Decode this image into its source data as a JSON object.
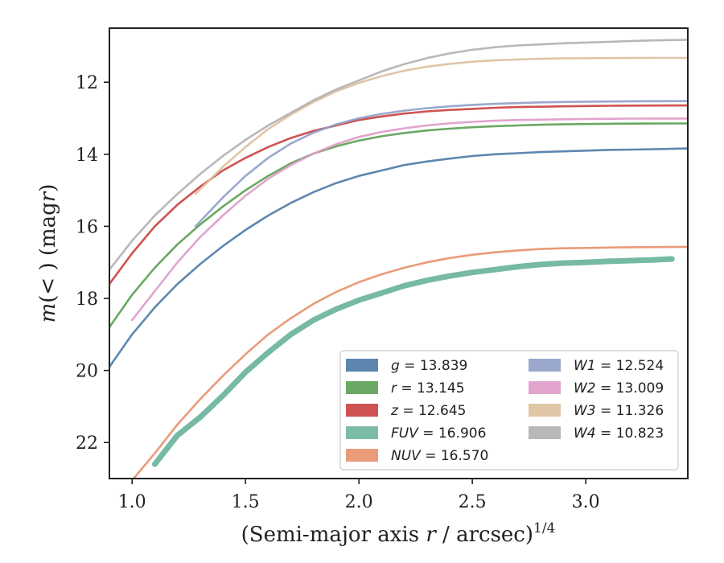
{
  "chart_data": {
    "type": "line",
    "xlabel": "(Semi-major axis r / arcsec)^1/4",
    "ylabel": "m(< r) (mag)",
    "xlim": [
      0.9,
      3.45
    ],
    "ylim": [
      23.0,
      10.5
    ],
    "y_inverted": true,
    "xticks": [
      "1.0",
      "1.5",
      "2.0",
      "2.5",
      "3.0"
    ],
    "yticks": [
      "12",
      "14",
      "16",
      "18",
      "20",
      "22"
    ],
    "grid": false,
    "legend_position": "lower-right",
    "legend_columns": 2,
    "series": [
      {
        "name": "g",
        "label_value": "13.839",
        "color": "#4c7aa6",
        "x": [
          0.9,
          1.0,
          1.1,
          1.2,
          1.3,
          1.4,
          1.5,
          1.6,
          1.7,
          1.8,
          1.9,
          2.0,
          2.1,
          2.2,
          2.3,
          2.4,
          2.5,
          2.6,
          2.7,
          2.8,
          2.9,
          3.0,
          3.1,
          3.2,
          3.3,
          3.45
        ],
        "y": [
          19.9,
          19.0,
          18.25,
          17.6,
          17.05,
          16.55,
          16.1,
          15.7,
          15.35,
          15.05,
          14.8,
          14.6,
          14.45,
          14.3,
          14.2,
          14.12,
          14.05,
          14.0,
          13.97,
          13.94,
          13.92,
          13.9,
          13.88,
          13.87,
          13.86,
          13.839
        ]
      },
      {
        "name": "r",
        "label_value": "13.145",
        "color": "#5a9e52",
        "x": [
          0.9,
          1.0,
          1.1,
          1.2,
          1.3,
          1.4,
          1.5,
          1.6,
          1.7,
          1.8,
          1.9,
          2.0,
          2.1,
          2.2,
          2.3,
          2.4,
          2.5,
          2.6,
          2.7,
          2.8,
          2.9,
          3.0,
          3.1,
          3.2,
          3.3,
          3.45
        ],
        "y": [
          18.8,
          17.9,
          17.15,
          16.5,
          15.95,
          15.45,
          15.0,
          14.6,
          14.25,
          13.98,
          13.78,
          13.62,
          13.5,
          13.41,
          13.34,
          13.29,
          13.25,
          13.22,
          13.2,
          13.18,
          13.17,
          13.16,
          13.155,
          13.15,
          13.148,
          13.145
        ]
      },
      {
        "name": "z",
        "label_value": "12.645",
        "color": "#c9403f",
        "x": [
          0.9,
          1.0,
          1.1,
          1.2,
          1.3,
          1.4,
          1.5,
          1.6,
          1.7,
          1.8,
          1.9,
          2.0,
          2.1,
          2.2,
          2.3,
          2.4,
          2.5,
          2.6,
          2.7,
          2.8,
          2.9,
          3.0,
          3.1,
          3.2,
          3.3,
          3.45
        ],
        "y": [
          17.6,
          16.75,
          16.0,
          15.4,
          14.9,
          14.45,
          14.1,
          13.8,
          13.55,
          13.35,
          13.2,
          13.05,
          12.95,
          12.87,
          12.81,
          12.77,
          12.74,
          12.71,
          12.69,
          12.68,
          12.67,
          12.66,
          12.655,
          12.65,
          12.648,
          12.645
        ]
      },
      {
        "name": "FUV",
        "label_value": "16.906",
        "color": "#6fb5a0",
        "x": [
          1.1,
          1.2,
          1.3,
          1.4,
          1.5,
          1.6,
          1.7,
          1.8,
          1.9,
          2.0,
          2.1,
          2.2,
          2.3,
          2.4,
          2.5,
          2.6,
          2.7,
          2.8,
          2.9,
          3.0,
          3.1,
          3.2,
          3.3,
          3.38
        ],
        "y": [
          22.6,
          21.8,
          21.3,
          20.7,
          20.05,
          19.5,
          19.0,
          18.6,
          18.3,
          18.05,
          17.85,
          17.65,
          17.5,
          17.38,
          17.28,
          17.2,
          17.12,
          17.06,
          17.02,
          17.0,
          16.97,
          16.95,
          16.93,
          16.906
        ]
      },
      {
        "name": "NUV",
        "label_value": "16.570",
        "color": "#e8906a",
        "x": [
          0.98,
          1.1,
          1.2,
          1.3,
          1.4,
          1.5,
          1.6,
          1.7,
          1.8,
          1.9,
          2.0,
          2.1,
          2.2,
          2.3,
          2.4,
          2.5,
          2.6,
          2.7,
          2.8,
          2.9,
          3.0,
          3.1,
          3.2,
          3.3,
          3.45
        ],
        "y": [
          23.2,
          22.3,
          21.5,
          20.8,
          20.15,
          19.55,
          19.0,
          18.55,
          18.15,
          17.82,
          17.55,
          17.33,
          17.15,
          17.0,
          16.88,
          16.79,
          16.72,
          16.67,
          16.63,
          16.61,
          16.6,
          16.59,
          16.58,
          16.575,
          16.57
        ]
      },
      {
        "name": "W1",
        "label_value": "12.524",
        "color": "#8f9fc8",
        "x": [
          1.28,
          1.4,
          1.5,
          1.6,
          1.7,
          1.8,
          1.9,
          2.0,
          2.1,
          2.2,
          2.3,
          2.4,
          2.5,
          2.6,
          2.7,
          2.8,
          2.9,
          3.0,
          3.1,
          3.2,
          3.3,
          3.45
        ],
        "y": [
          16.0,
          15.2,
          14.6,
          14.1,
          13.7,
          13.4,
          13.17,
          13.0,
          12.88,
          12.79,
          12.72,
          12.67,
          12.63,
          12.6,
          12.58,
          12.56,
          12.55,
          12.54,
          12.535,
          12.53,
          12.527,
          12.524
        ]
      },
      {
        "name": "W2",
        "label_value": "13.009",
        "color": "#de9ac8",
        "x": [
          1.0,
          1.1,
          1.2,
          1.3,
          1.4,
          1.5,
          1.6,
          1.7,
          1.8,
          1.9,
          2.0,
          2.1,
          2.2,
          2.3,
          2.4,
          2.5,
          2.6,
          2.7,
          2.8,
          2.9,
          3.0,
          3.1,
          3.2,
          3.3,
          3.45
        ],
        "y": [
          18.6,
          17.8,
          17.0,
          16.3,
          15.7,
          15.15,
          14.68,
          14.3,
          13.98,
          13.72,
          13.52,
          13.38,
          13.28,
          13.2,
          13.14,
          13.1,
          13.07,
          13.05,
          13.04,
          13.03,
          13.02,
          13.015,
          13.012,
          13.01,
          13.009
        ]
      },
      {
        "name": "W3",
        "label_value": "11.326",
        "color": "#dcc09c",
        "x": [
          1.28,
          1.4,
          1.5,
          1.6,
          1.7,
          1.8,
          1.9,
          2.0,
          2.1,
          2.2,
          2.3,
          2.4,
          2.5,
          2.6,
          2.7,
          2.8,
          2.9,
          3.0,
          3.1,
          3.2,
          3.3,
          3.45
        ],
        "y": [
          15.1,
          14.35,
          13.8,
          13.3,
          12.9,
          12.55,
          12.25,
          12.02,
          11.83,
          11.68,
          11.57,
          11.49,
          11.43,
          11.39,
          11.37,
          11.35,
          11.34,
          11.335,
          11.33,
          11.328,
          11.327,
          11.326
        ]
      },
      {
        "name": "W4",
        "label_value": "10.823",
        "color": "#b0b0b0",
        "x": [
          0.9,
          1.0,
          1.1,
          1.2,
          1.3,
          1.4,
          1.5,
          1.6,
          1.7,
          1.8,
          1.9,
          2.0,
          2.1,
          2.2,
          2.3,
          2.4,
          2.5,
          2.6,
          2.7,
          2.8,
          2.9,
          3.0,
          3.1,
          3.2,
          3.3,
          3.45
        ],
        "y": [
          17.2,
          16.4,
          15.7,
          15.1,
          14.55,
          14.05,
          13.6,
          13.2,
          12.85,
          12.5,
          12.2,
          11.95,
          11.7,
          11.5,
          11.33,
          11.2,
          11.1,
          11.03,
          10.98,
          10.95,
          10.92,
          10.9,
          10.88,
          10.86,
          10.84,
          10.823
        ]
      }
    ]
  }
}
